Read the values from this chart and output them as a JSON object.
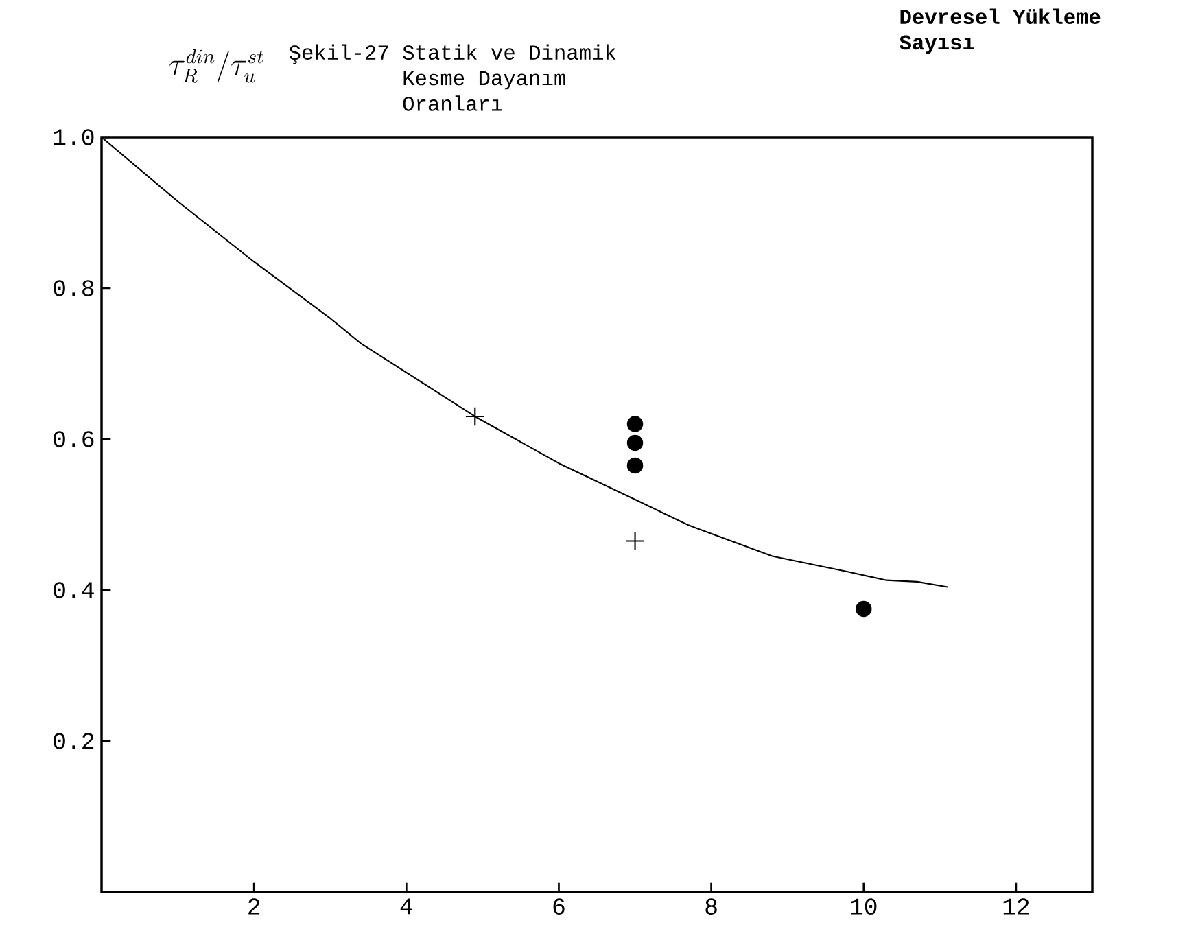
{
  "chart_data": {
    "type": "scatter",
    "title": "Şekil-27 Statik ve Dinamik Kesme Dayanım Oranları",
    "xlabel": "Devresel Yükleme Sayısı",
    "ylabel": "\\tau_{R}^{din}/\\tau_{u}^{st}",
    "xlim": [
      0,
      13
    ],
    "ylim": [
      0,
      1
    ],
    "xticks": [
      2,
      4,
      6,
      8,
      10,
      12
    ],
    "yticks": [
      0.2,
      0.4,
      0.6,
      0.8,
      {
        "value": 1,
        "label": "1.0"
      }
    ],
    "series": [
      {
        "type": "line",
        "color": "#000000",
        "marker": "none",
        "line_style": "solid",
        "x": [
          0,
          1,
          2,
          3,
          3.4,
          4.9,
          6,
          7,
          7.7,
          8.8,
          9.8,
          10.3,
          10.7,
          11.1
        ],
        "values": [
          1,
          0.915,
          0.835,
          0.76,
          0.727,
          0.63,
          0.568,
          0.52,
          0.486,
          0.445,
          0.424,
          0.413,
          0.411,
          0.404
        ]
      },
      {
        "color": "#000000",
        "marker": "cross",
        "x": [
          4.9,
          7
        ],
        "values": [
          0.63,
          0.465
        ]
      },
      {
        "color": "#000000",
        "marker": "circle",
        "x": [
          7,
          7,
          7,
          10
        ],
        "values": [
          0.62,
          0.595,
          0.565,
          0.375
        ]
      }
    ]
  }
}
